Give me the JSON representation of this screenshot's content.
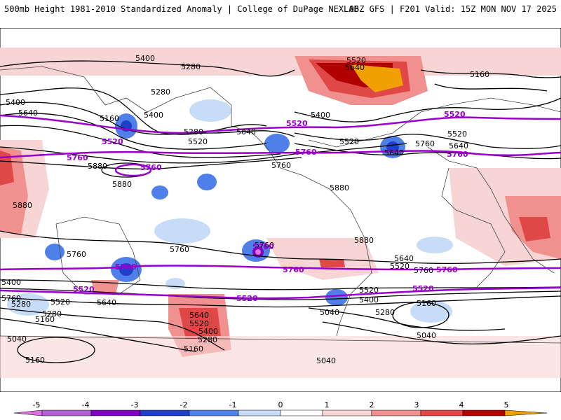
{
  "header": {
    "left_title": "500mb Height 1981-2010 Standardized Anomaly | College of DuPage NEXLAB",
    "right_title": "06Z GFS | F201 Valid: 15Z MON NOV 17 2025"
  },
  "colors": {
    "background": "#ffffff",
    "contour": "#000000",
    "highlight_contour": "#9900cc",
    "neg5": "#e070e0",
    "neg4": "#8000c0",
    "neg3": "#1f3fc8",
    "neg2": "#4f7fe8",
    "neg1": "#c6dcf7",
    "pos1": "#f8d5d5",
    "pos2": "#f0908f",
    "pos3": "#e04848",
    "pos4": "#b00000",
    "pos5": "#f0a000"
  },
  "contour_labels": {
    "h5400_nw": "5400",
    "h5280_n": "5280",
    "h5280_n2": "5280",
    "h5400_w1": "5400",
    "h5640_w": "5640",
    "h5160_pac": "5160",
    "h5400_pac": "5400",
    "h5280_pac": "5280",
    "h5520_pac": "5520",
    "h5640_pac": "5640",
    "h5400_atl": "5400",
    "h5520_na": "5520",
    "h5640_na": "5640",
    "h5520_eu": "5520",
    "h5640_eu": "5640",
    "h5760_eu": "5760",
    "h5160_eu": "5160",
    "h5640_gl": "5640",
    "h5520_gl": "5520",
    "h5880_w": "5880",
    "h5880_pac": "5880",
    "h5880_mid": "5880",
    "h5760_mx": "5760",
    "h5880_af": "5880",
    "h5760_mid": "5760",
    "h5880_sa": "5880",
    "h5760_au": "5760",
    "h5760_s1": "5760",
    "h5760_s2": "5760",
    "h5760_s3": "5760",
    "h5640_s1": "5640",
    "h5640_s2": "5640",
    "h5400_s1": "5400",
    "h5520_s1": "5520",
    "h5520_s2": "5520",
    "h5520_s3": "5520",
    "h5280_s1": "5280",
    "h5280_s2": "5280",
    "h5280_s3": "5280",
    "h5160_s1": "5160",
    "h5160_s2": "5160",
    "h5160_s3": "5160",
    "h5160_s4": "5160",
    "h5040_s1": "5040",
    "h5040_s2": "5040",
    "h5040_s3": "5040",
    "h5640_nz": "5640",
    "h5520_nz": "5520",
    "h5400_nz": "5400",
    "h5280_nz": "5280",
    "h5400_sa": "5400",
    "h5040_sa": "5040"
  },
  "highlight_labels": {
    "p5520_a": "5520",
    "p5520_b": "5520",
    "p5520_c": "5520",
    "p5760_a": "5760",
    "p5760_b": "5760",
    "p5760_c": "5760",
    "p5760_s1": "5760",
    "p5760_s2": "5760",
    "p5760_s3": "5760",
    "p5520_s1": "5520",
    "p5520_s2": "5520",
    "p5520_s3": "5520",
    "p5760_d": "5760",
    "p5760_e": "5760"
  },
  "colorbar": {
    "ticks": [
      "-5",
      "-4",
      "-3",
      "-2",
      "-1",
      "0",
      "1",
      "2",
      "3",
      "4",
      "5"
    ]
  }
}
